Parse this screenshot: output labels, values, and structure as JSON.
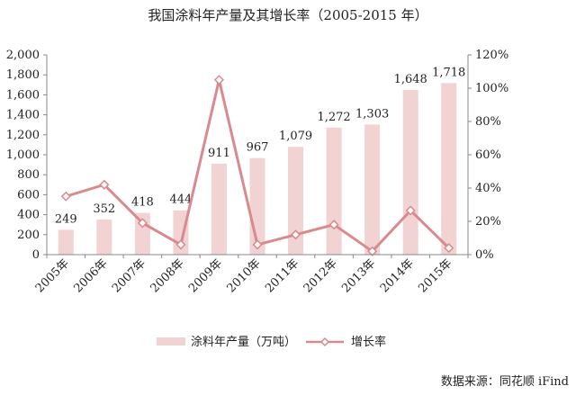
{
  "title": "我国涂料年产量及其增长率（2005-2015 年）",
  "source": "数据来源：同花顺 iFind",
  "colors": {
    "bar": "#f2d3d3",
    "line": "#d98a8e",
    "axis": "#888888"
  },
  "chart_data": {
    "type": "bar",
    "categories": [
      "2005年",
      "2006年",
      "2007年",
      "2008年",
      "2009年",
      "2010年",
      "2011年",
      "2012年",
      "2013年",
      "2014年",
      "2015年"
    ],
    "series": [
      {
        "name": "涂料年产量（万吨）",
        "type": "bar",
        "axis": "left",
        "values": [
          249,
          352,
          418,
          444,
          911,
          967,
          1079,
          1272,
          1303,
          1648,
          1718
        ],
        "labels": [
          "249",
          "352",
          "418",
          "444",
          "911",
          "967",
          "1,079",
          "1,272",
          "1,303",
          "1,648",
          "1,718"
        ]
      },
      {
        "name": "增长率",
        "type": "line",
        "axis": "right",
        "values": [
          0.35,
          0.42,
          0.19,
          0.06,
          1.05,
          0.06,
          0.12,
          0.18,
          0.02,
          0.265,
          0.04
        ]
      }
    ],
    "left_axis": {
      "min": 0,
      "max": 2000,
      "ticks": [
        "0",
        "200",
        "400",
        "600",
        "800",
        "1,000",
        "1,200",
        "1,400",
        "1,600",
        "1,800",
        "2,000"
      ]
    },
    "right_axis": {
      "min": 0,
      "max": 1.2,
      "ticks": [
        "0%",
        "20%",
        "40%",
        "60%",
        "80%",
        "100%",
        "120%"
      ]
    },
    "grid": false,
    "legend": "bottom"
  }
}
